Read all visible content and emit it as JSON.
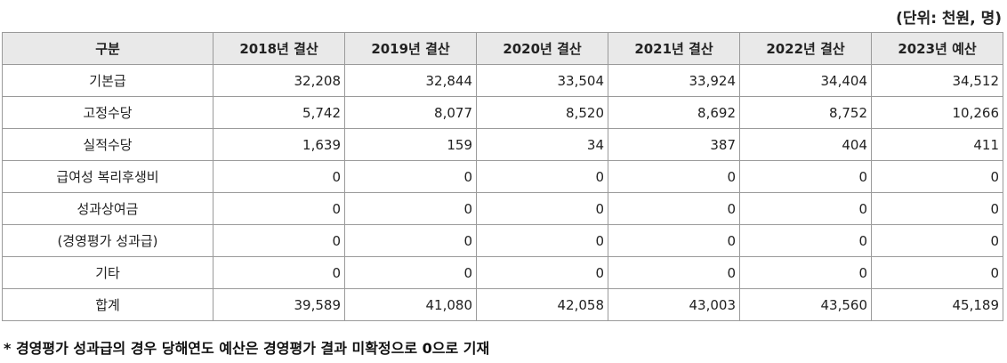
{
  "unit_label": "(단위: 천원, 명)",
  "table": {
    "headers": [
      "구분",
      "2018년 결산",
      "2019년 결산",
      "2020년 결산",
      "2021년 결산",
      "2022년 결산",
      "2023년 예산"
    ],
    "rows": [
      {
        "label": "기본급",
        "values": [
          "32,208",
          "32,844",
          "33,504",
          "33,924",
          "34,404",
          "34,512"
        ]
      },
      {
        "label": "고정수당",
        "values": [
          "5,742",
          "8,077",
          "8,520",
          "8,692",
          "8,752",
          "10,266"
        ]
      },
      {
        "label": "실적수당",
        "values": [
          "1,639",
          "159",
          "34",
          "387",
          "404",
          "411"
        ]
      },
      {
        "label": "급여성 복리후생비",
        "values": [
          "0",
          "0",
          "0",
          "0",
          "0",
          "0"
        ]
      },
      {
        "label": "성과상여금",
        "values": [
          "0",
          "0",
          "0",
          "0",
          "0",
          "0"
        ]
      },
      {
        "label": "(경영평가 성과급)",
        "values": [
          "0",
          "0",
          "0",
          "0",
          "0",
          "0"
        ]
      },
      {
        "label": "기타",
        "values": [
          "0",
          "0",
          "0",
          "0",
          "0",
          "0"
        ]
      },
      {
        "label": "합계",
        "values": [
          "39,589",
          "41,080",
          "42,058",
          "43,003",
          "43,560",
          "45,189"
        ]
      }
    ]
  },
  "footnote": "* 경영평가 성과급의 경우 당해연도 예산은 경영평가 결과 미확정으로 0으로 기재"
}
